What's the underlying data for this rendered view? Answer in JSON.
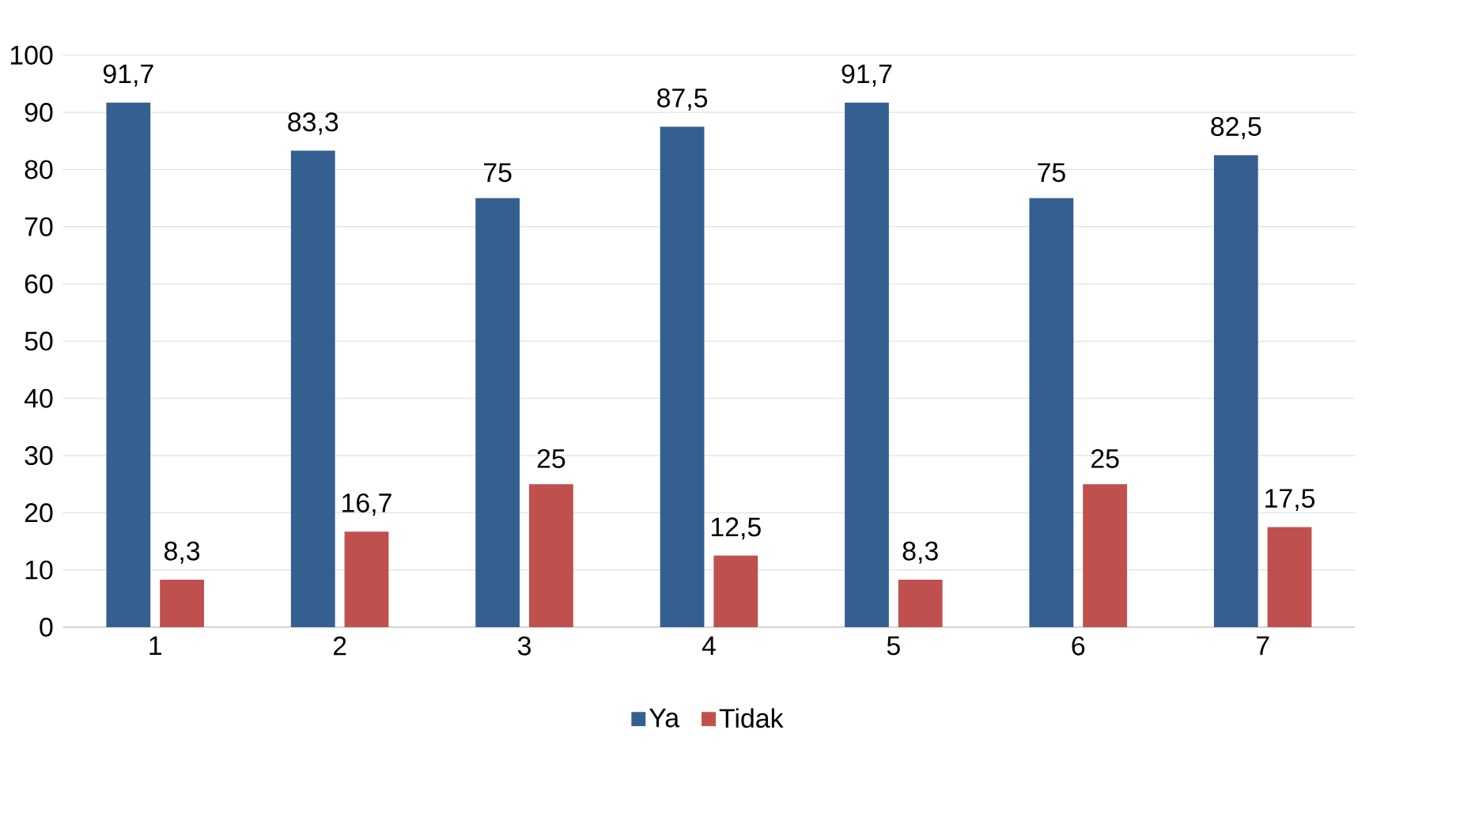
{
  "chart_data": {
    "type": "bar",
    "categories": [
      "1",
      "2",
      "3",
      "4",
      "5",
      "6",
      "7"
    ],
    "series": [
      {
        "name": "Ya",
        "color": "#365f91",
        "values": [
          91.7,
          83.3,
          75,
          87.5,
          91.7,
          75,
          82.5
        ],
        "value_labels": [
          "91,7",
          "83,3",
          "75",
          "87,5",
          "91,7",
          "75",
          "82,5"
        ]
      },
      {
        "name": "Tidak",
        "color": "#c0504d",
        "values": [
          8.3,
          16.7,
          25,
          12.5,
          8.3,
          25,
          17.5
        ],
        "value_labels": [
          "8,3",
          "16,7",
          "25",
          "12,5",
          "8,3",
          "25",
          "17,5"
        ]
      }
    ],
    "ylim": [
      0,
      100
    ],
    "yticks": [
      0,
      10,
      20,
      30,
      40,
      50,
      60,
      70,
      80,
      90,
      100
    ],
    "grid": "y",
    "legend": "bottom"
  }
}
